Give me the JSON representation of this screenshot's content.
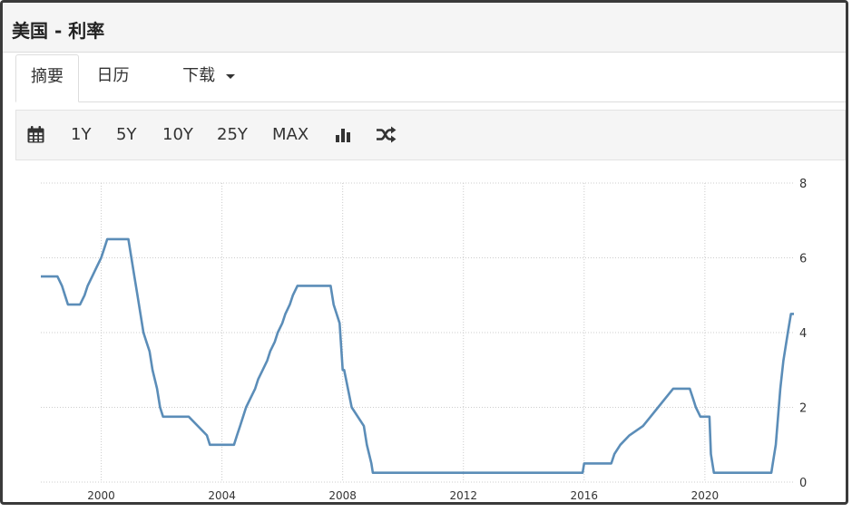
{
  "header": {
    "title": "美国 - 利率"
  },
  "tabs": [
    {
      "label": "摘要",
      "active": true
    },
    {
      "label": "日历",
      "active": false
    },
    {
      "label": "下载",
      "active": false,
      "dropdown": true
    }
  ],
  "toolbar": {
    "calendar_icon": "calendar-icon",
    "ranges": [
      "1Y",
      "5Y",
      "10Y",
      "25Y",
      "MAX"
    ],
    "chart_type_icon": "bar-chart-icon",
    "compare_icon": "shuffle-icon"
  },
  "colors": {
    "line": "#5b8db8",
    "grid": "#cccccc",
    "text": "#333333"
  },
  "chart_data": {
    "type": "line",
    "title": "",
    "xlabel": "",
    "ylabel": "",
    "xlim": [
      1998.0,
      2022.95
    ],
    "ylim": [
      0,
      8
    ],
    "x_ticks": [
      2000,
      2004,
      2008,
      2012,
      2016,
      2020
    ],
    "y_ticks": [
      0,
      2,
      4,
      6,
      8
    ],
    "grid": true,
    "y_axis_side": "right",
    "series": [
      {
        "x": [
          1998.0,
          1998.55,
          1998.7,
          1998.8,
          1998.9,
          1999.3,
          1999.45,
          1999.55,
          1999.7,
          1999.85,
          2000.0,
          2000.1,
          2000.2,
          2000.35,
          2000.5,
          2000.9,
          2001.0,
          2001.1,
          2001.2,
          2001.3,
          2001.4,
          2001.5,
          2001.6,
          2001.7,
          2001.85,
          2001.95,
          2002.05,
          2002.9,
          2003.5,
          2003.6,
          2004.4,
          2004.5,
          2004.6,
          2004.7,
          2004.8,
          2004.95,
          2005.1,
          2005.2,
          2005.35,
          2005.5,
          2005.6,
          2005.75,
          2005.85,
          2006.0,
          2006.1,
          2006.25,
          2006.35,
          2006.5,
          2007.6,
          2007.7,
          2007.8,
          2007.9,
          2008.0,
          2008.05,
          2008.3,
          2008.7,
          2008.8,
          2008.95,
          2009.0,
          2015.95,
          2016.0,
          2016.9,
          2017.0,
          2017.2,
          2017.5,
          2017.95,
          2018.2,
          2018.45,
          2018.7,
          2018.95,
          2019.5,
          2019.6,
          2019.7,
          2019.85,
          2020.15,
          2020.2,
          2020.3,
          2022.2,
          2022.25,
          2022.35,
          2022.5,
          2022.6,
          2022.75,
          2022.85,
          2022.95
        ],
        "y": [
          5.5,
          5.5,
          5.25,
          5.0,
          4.75,
          4.75,
          5.0,
          5.25,
          5.5,
          5.75,
          6.0,
          6.25,
          6.5,
          6.5,
          6.5,
          6.5,
          6.0,
          5.5,
          5.0,
          4.5,
          4.0,
          3.75,
          3.5,
          3.0,
          2.5,
          2.0,
          1.75,
          1.75,
          1.25,
          1.0,
          1.0,
          1.25,
          1.5,
          1.75,
          2.0,
          2.25,
          2.5,
          2.75,
          3.0,
          3.25,
          3.5,
          3.75,
          4.0,
          4.25,
          4.5,
          4.75,
          5.0,
          5.25,
          5.25,
          4.75,
          4.5,
          4.25,
          3.0,
          3.0,
          2.0,
          1.5,
          1.0,
          0.5,
          0.25,
          0.25,
          0.5,
          0.5,
          0.75,
          1.0,
          1.25,
          1.5,
          1.75,
          2.0,
          2.25,
          2.5,
          2.5,
          2.25,
          2.0,
          1.75,
          1.75,
          0.75,
          0.25,
          0.25,
          0.5,
          1.0,
          2.5,
          3.25,
          4.0,
          4.5,
          4.5
        ]
      }
    ]
  }
}
